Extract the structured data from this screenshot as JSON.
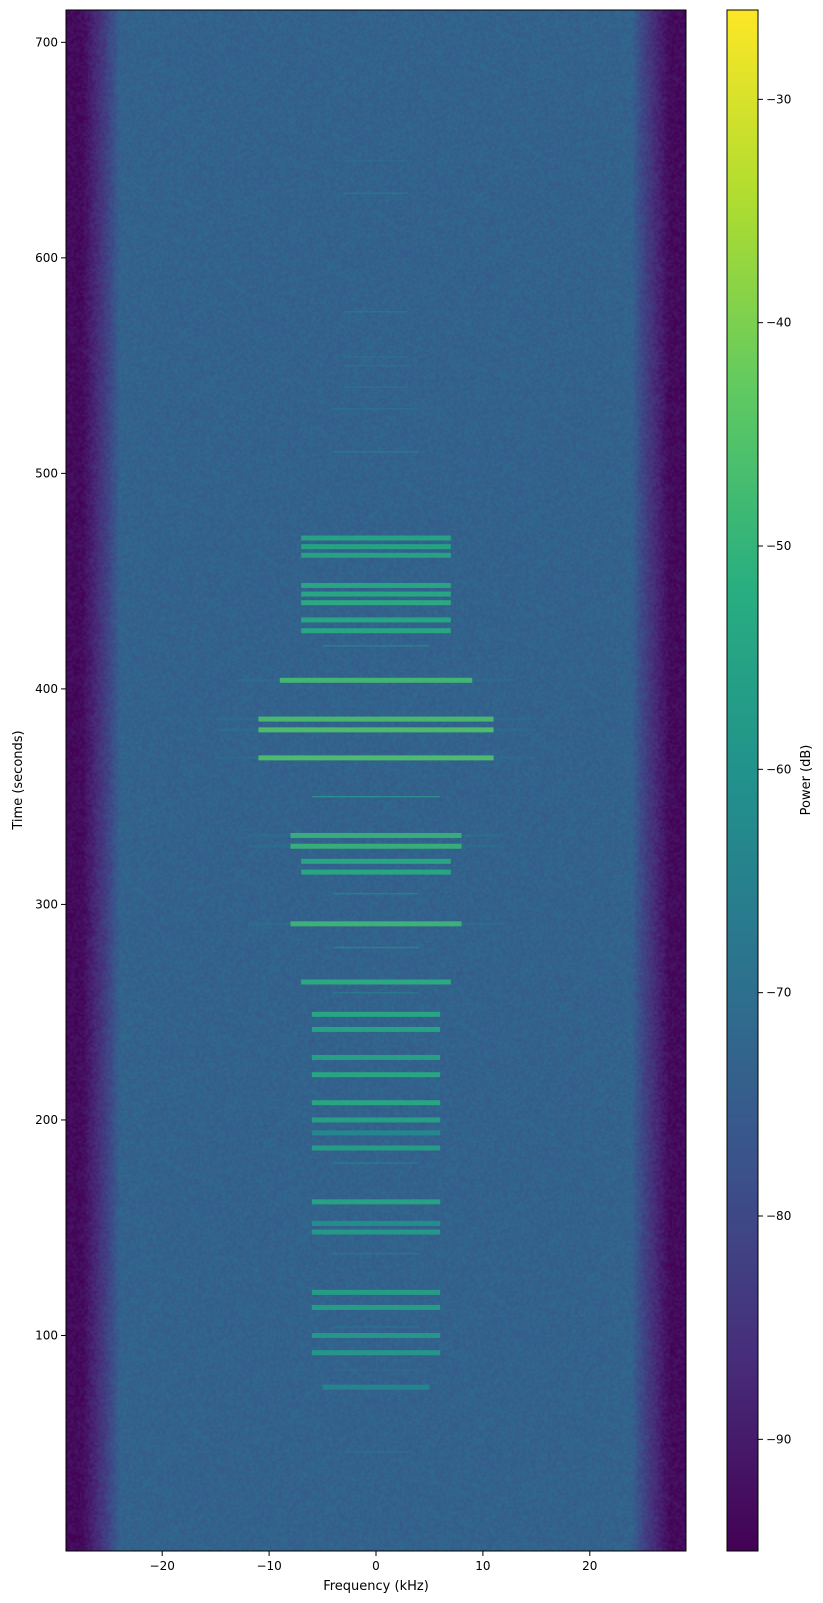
{
  "chart_data": {
    "type": "heatmap",
    "xlabel": "Frequency (kHz)",
    "ylabel": "Time (seconds)",
    "colorbar_label": "Power (dB)",
    "colormap": "viridis",
    "xlim": [
      -29,
      29
    ],
    "ylim": [
      0,
      715
    ],
    "clim": [
      -95,
      -26
    ],
    "x_ticks": [
      -20,
      -10,
      0,
      10,
      20
    ],
    "y_ticks": [
      100,
      200,
      300,
      400,
      500,
      600,
      700
    ],
    "colorbar_ticks": [
      -90,
      -80,
      -70,
      -60,
      -50,
      -40,
      -30
    ],
    "noise_floor_db": -73,
    "band_edge_db": -93,
    "passband_khz": [
      -24,
      24
    ],
    "bursts": [
      {
        "t": 46,
        "half_width": 3,
        "power": -68,
        "weak": true
      },
      {
        "t": 76,
        "half_width": 5,
        "power": -63
      },
      {
        "t": 84,
        "half_width": 4,
        "power": -70,
        "weak": true
      },
      {
        "t": 92,
        "half_width": 6,
        "power": -57
      },
      {
        "t": 100,
        "half_width": 6,
        "power": -57
      },
      {
        "t": 104,
        "half_width": 4,
        "power": -68,
        "weak": true
      },
      {
        "t": 113,
        "half_width": 6,
        "power": -55
      },
      {
        "t": 120,
        "half_width": 6,
        "power": -55
      },
      {
        "t": 138,
        "half_width": 4,
        "power": -66,
        "weak": true
      },
      {
        "t": 148,
        "half_width": 6,
        "power": -56
      },
      {
        "t": 152,
        "half_width": 6,
        "power": -60
      },
      {
        "t": 162,
        "half_width": 6,
        "power": -53
      },
      {
        "t": 180,
        "half_width": 4,
        "power": -64,
        "weak": true
      },
      {
        "t": 187,
        "half_width": 6,
        "power": -55
      },
      {
        "t": 194,
        "half_width": 6,
        "power": -62
      },
      {
        "t": 200,
        "half_width": 6,
        "power": -54
      },
      {
        "t": 208,
        "half_width": 6,
        "power": -52
      },
      {
        "t": 221,
        "half_width": 6,
        "power": -52
      },
      {
        "t": 229,
        "half_width": 6,
        "power": -54
      },
      {
        "t": 242,
        "half_width": 6,
        "power": -53
      },
      {
        "t": 249,
        "half_width": 6,
        "power": -52
      },
      {
        "t": 259,
        "half_width": 4,
        "power": -64,
        "weak": true
      },
      {
        "t": 264,
        "half_width": 7,
        "power": -51
      },
      {
        "t": 280,
        "half_width": 4,
        "power": -60,
        "weak": true
      },
      {
        "t": 291,
        "half_width": 8,
        "power": -48
      },
      {
        "t": 305,
        "half_width": 4,
        "power": -62,
        "weak": true
      },
      {
        "t": 315,
        "half_width": 7,
        "power": -52
      },
      {
        "t": 320,
        "half_width": 7,
        "power": -52
      },
      {
        "t": 327,
        "half_width": 8,
        "power": -49
      },
      {
        "t": 332,
        "half_width": 8,
        "power": -49
      },
      {
        "t": 350,
        "half_width": 6,
        "power": -55,
        "weak": true
      },
      {
        "t": 368,
        "half_width": 11,
        "power": -45
      },
      {
        "t": 381,
        "half_width": 11,
        "power": -45
      },
      {
        "t": 386,
        "half_width": 11,
        "power": -46
      },
      {
        "t": 404,
        "half_width": 9,
        "power": -47
      },
      {
        "t": 420,
        "half_width": 5,
        "power": -62,
        "weak": true
      },
      {
        "t": 427,
        "half_width": 7,
        "power": -52
      },
      {
        "t": 432,
        "half_width": 7,
        "power": -52
      },
      {
        "t": 440,
        "half_width": 7,
        "power": -51
      },
      {
        "t": 444,
        "half_width": 7,
        "power": -52
      },
      {
        "t": 448,
        "half_width": 7,
        "power": -52
      },
      {
        "t": 462,
        "half_width": 7,
        "power": -53
      },
      {
        "t": 466,
        "half_width": 7,
        "power": -53
      },
      {
        "t": 470,
        "half_width": 7,
        "power": -53
      },
      {
        "t": 510,
        "half_width": 4,
        "power": -65,
        "weak": true
      },
      {
        "t": 530,
        "half_width": 4,
        "power": -68,
        "weak": true
      },
      {
        "t": 540,
        "half_width": 3,
        "power": -68,
        "weak": true
      },
      {
        "t": 550,
        "half_width": 3,
        "power": -68,
        "weak": true
      },
      {
        "t": 554,
        "half_width": 3,
        "power": -68,
        "weak": true
      },
      {
        "t": 575,
        "half_width": 3,
        "power": -66,
        "weak": true
      },
      {
        "t": 630,
        "half_width": 3,
        "power": -66,
        "weak": true
      },
      {
        "t": 645,
        "half_width": 3,
        "power": -69,
        "weak": true
      }
    ]
  }
}
